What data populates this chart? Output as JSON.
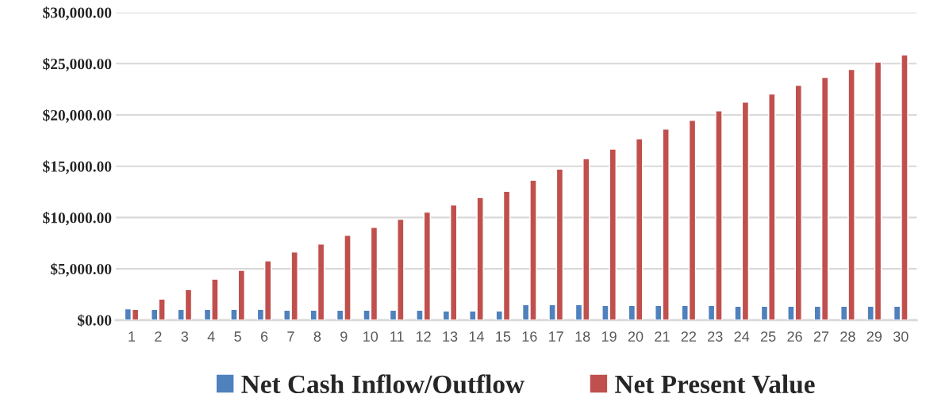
{
  "chart_data": {
    "type": "bar",
    "categories": [
      "1",
      "2",
      "3",
      "4",
      "5",
      "6",
      "7",
      "8",
      "9",
      "10",
      "11",
      "12",
      "13",
      "14",
      "15",
      "16",
      "17",
      "18",
      "19",
      "20",
      "21",
      "22",
      "23",
      "24",
      "25",
      "26",
      "27",
      "28",
      "29",
      "30"
    ],
    "series": [
      {
        "name": "Net Cash Inflow/Outflow",
        "color": "#4f81bd",
        "values": [
          1100,
          1040,
          1040,
          1040,
          1040,
          1040,
          960,
          960,
          960,
          960,
          960,
          960,
          880,
          880,
          880,
          1500,
          1500,
          1500,
          1420,
          1420,
          1420,
          1420,
          1420,
          1350,
          1350,
          1350,
          1350,
          1350,
          1350,
          1350
        ]
      },
      {
        "name": "Net Present Value",
        "color": "#c0504d",
        "values": [
          1040,
          2050,
          2980,
          3990,
          4850,
          5780,
          6640,
          7410,
          8270,
          9050,
          9830,
          10530,
          11230,
          11930,
          12550,
          13640,
          14730,
          15740,
          16670,
          17680,
          18620,
          19470,
          20410,
          21260,
          22040,
          22900,
          23670,
          24450,
          25150,
          25850
        ]
      }
    ],
    "ylim": [
      0,
      30000
    ],
    "yticks": [
      {
        "value": 0,
        "label": "$0.00"
      },
      {
        "value": 5000,
        "label": "$5,000.00"
      },
      {
        "value": 10000,
        "label": "$10,000.00"
      },
      {
        "value": 15000,
        "label": "$15,000.00"
      },
      {
        "value": 20000,
        "label": "$20,000.00"
      },
      {
        "value": 25000,
        "label": "$25,000.00"
      },
      {
        "value": 30000,
        "label": "$30,000.00"
      }
    ],
    "grid": "y",
    "legend": "bottom"
  }
}
